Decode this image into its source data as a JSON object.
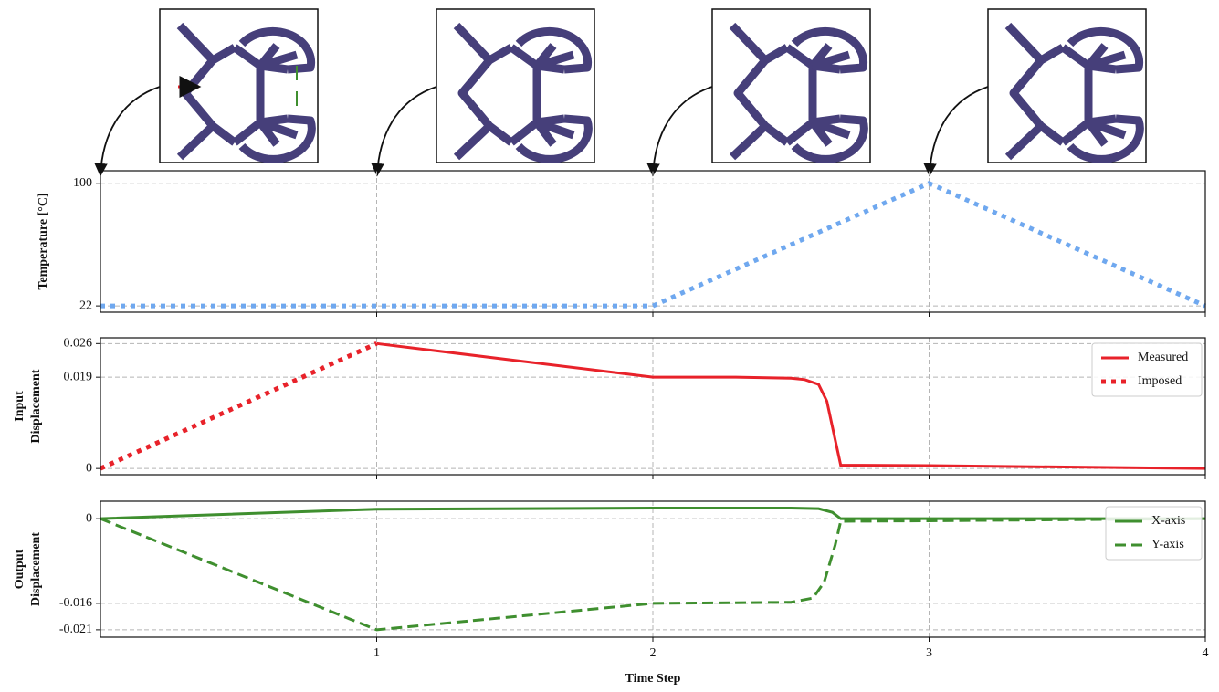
{
  "chart_data": [
    {
      "type": "line",
      "ylabel": [
        "Temperature [°C]"
      ],
      "xlim": [
        0,
        4
      ],
      "ylim": [
        18,
        108
      ],
      "yticks": [
        22,
        100
      ],
      "grid": true,
      "series": [
        {
          "name": "Temperature",
          "color": "#6fa8ef",
          "linestyle": "dotted",
          "x": [
            0,
            1,
            2,
            3,
            4
          ],
          "values": [
            22,
            22,
            22,
            100,
            22
          ]
        }
      ]
    },
    {
      "type": "line",
      "ylabel": [
        "Input",
        "Displacement"
      ],
      "xlim": [
        0,
        4
      ],
      "ylim": [
        -0.0013,
        0.0272
      ],
      "yticks": [
        0,
        0.019,
        0.026
      ],
      "grid": true,
      "legend": "upper right",
      "series": [
        {
          "name": "Measured",
          "color": "#e8222a",
          "linestyle": "solid",
          "x": [
            1,
            1.5,
            2,
            2.3,
            2.5,
            2.55,
            2.6,
            2.63,
            2.66,
            2.68,
            3,
            4
          ],
          "values": [
            0.026,
            0.0225,
            0.019,
            0.019,
            0.0188,
            0.0185,
            0.0175,
            0.014,
            0.006,
            0.0007,
            0.0006,
            0.0
          ]
        },
        {
          "name": "Imposed",
          "color": "#e8222a",
          "linestyle": "dotted",
          "x": [
            0,
            1
          ],
          "values": [
            0,
            0.026
          ]
        }
      ]
    },
    {
      "type": "line",
      "ylabel": [
        "Output",
        "Displacement"
      ],
      "xlabel": "Time Step",
      "xlim": [
        0,
        4
      ],
      "xticks": [
        1,
        2,
        3,
        4
      ],
      "ylim": [
        -0.0224,
        0.0033
      ],
      "yticks": [
        -0.021,
        -0.016,
        0
      ],
      "grid": true,
      "legend": "upper right",
      "series": [
        {
          "name": "X-axis",
          "color": "#3f8f2f",
          "linestyle": "solid",
          "x": [
            0,
            1,
            2,
            2.5,
            2.6,
            2.65,
            2.68,
            3,
            4
          ],
          "values": [
            0,
            0.0018,
            0.002,
            0.002,
            0.0019,
            0.0012,
            0,
            0,
            0
          ]
        },
        {
          "name": "Y-axis",
          "color": "#3f8f2f",
          "linestyle": "dashed",
          "x": [
            0,
            1,
            2,
            2.5,
            2.58,
            2.62,
            2.66,
            2.68,
            3,
            4
          ],
          "values": [
            0,
            -0.021,
            -0.016,
            -0.0158,
            -0.015,
            -0.012,
            -0.005,
            -0.0005,
            -0.0004,
            0
          ]
        }
      ]
    }
  ]
}
